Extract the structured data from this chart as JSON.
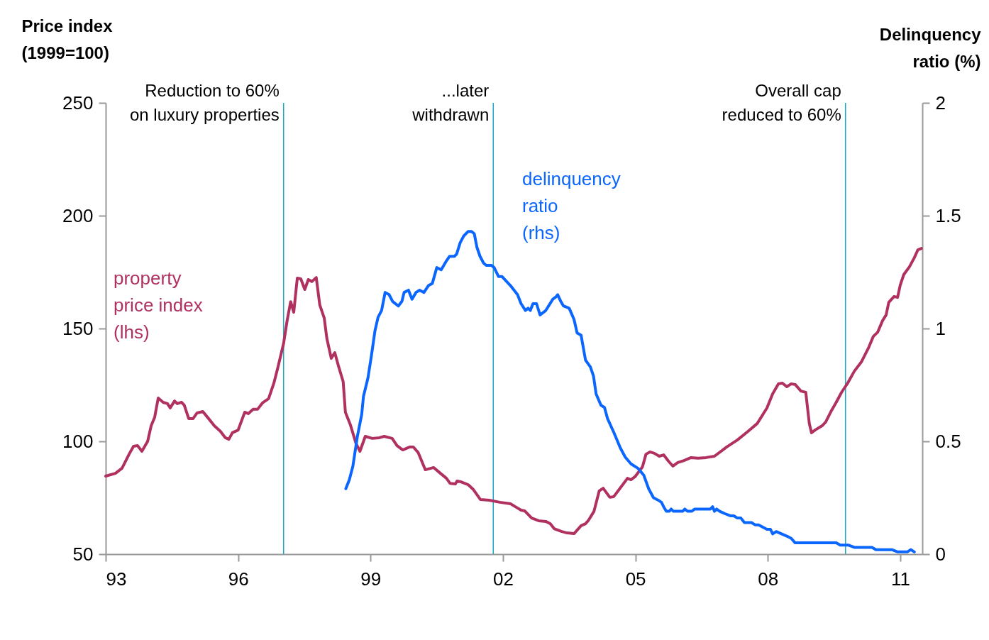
{
  "chart_data": {
    "type": "line",
    "ylabel": "Price index\n(1999=100)",
    "y2label": "Delinquency\nratio (%)",
    "xlim": [
      1993,
      2011.5
    ],
    "xticks": [
      {
        "value": 1993,
        "label": "93"
      },
      {
        "value": 1996,
        "label": "96"
      },
      {
        "value": 1999,
        "label": "99"
      },
      {
        "value": 2002,
        "label": "02"
      },
      {
        "value": 2005,
        "label": "05"
      },
      {
        "value": 2008,
        "label": "08"
      },
      {
        "value": 2011,
        "label": "11"
      }
    ],
    "ylim": [
      50,
      250
    ],
    "yticks": [
      50,
      100,
      150,
      200,
      250
    ],
    "y2lim": [
      0,
      2
    ],
    "y2ticks": [
      0,
      0.5,
      1,
      1.5,
      2
    ],
    "series": [
      {
        "name": "property\nprice index\n (lhs)",
        "color": "#b03060",
        "x": [
          1993.0,
          1993.22,
          1993.37,
          1993.53,
          1993.63,
          1993.72,
          1993.82,
          1993.95,
          1994.03,
          1994.11,
          1994.19,
          1994.3,
          1994.4,
          1994.46,
          1994.56,
          1994.62,
          1994.72,
          1994.78,
          1994.88,
          1994.98,
          1995.07,
          1995.2,
          1995.33,
          1995.46,
          1995.6,
          1995.71,
          1995.79,
          1995.87,
          1996.0,
          1996.15,
          1996.23,
          1996.34,
          1996.44,
          1996.55,
          1996.69,
          1996.81,
          1996.9,
          1997.03,
          1997.11,
          1997.19,
          1997.26,
          1997.34,
          1997.42,
          1997.51,
          1997.59,
          1997.67,
          1997.77,
          1997.85,
          1997.95,
          1998.01,
          1998.11,
          1998.19,
          1998.27,
          1998.38,
          1998.43,
          1998.54,
          1998.67,
          1998.76,
          1998.88,
          1999.04,
          1999.2,
          1999.31,
          1999.49,
          1999.6,
          1999.73,
          1999.89,
          1999.97,
          2000.08,
          2000.24,
          2000.43,
          2000.56,
          2000.72,
          2000.8,
          2000.92,
          2000.96,
          2001.04,
          2001.21,
          2001.33,
          2001.49,
          2001.69,
          2001.93,
          2002.17,
          2002.3,
          2002.41,
          2002.49,
          2002.65,
          2002.81,
          2002.97,
          2003.07,
          2003.16,
          2003.32,
          2003.45,
          2003.61,
          2003.77,
          2003.87,
          2003.93,
          2004.06,
          2004.18,
          2004.27,
          2004.42,
          2004.51,
          2004.63,
          2004.82,
          2004.9,
          2004.99,
          2005.16,
          2005.24,
          2005.33,
          2005.43,
          2005.54,
          2005.64,
          2005.75,
          2005.85,
          2005.96,
          2006.1,
          2006.26,
          2006.42,
          2006.6,
          2006.79,
          2007.07,
          2007.31,
          2007.55,
          2007.76,
          2007.98,
          2008.11,
          2008.24,
          2008.33,
          2008.43,
          2008.53,
          2008.62,
          2008.75,
          2008.86,
          2008.94,
          2008.99,
          2009.07,
          2009.23,
          2009.31,
          2009.43,
          2009.55,
          2009.67,
          2009.8,
          2009.96,
          2010.12,
          2010.29,
          2010.39,
          2010.49,
          2010.6,
          2010.68,
          2010.74,
          2010.86,
          2010.94,
          2011.0,
          2011.08,
          2011.21,
          2011.32,
          2011.4,
          2011.48
        ],
        "values": [
          84.6,
          85.8,
          88.1,
          94.3,
          97.8,
          98.1,
          95.6,
          100.0,
          106.9,
          110.7,
          119.2,
          117.3,
          116.7,
          114.8,
          117.9,
          116.7,
          117.3,
          116.0,
          110.1,
          110.1,
          112.6,
          113.2,
          110.1,
          106.9,
          104.4,
          101.6,
          100.9,
          103.8,
          105.0,
          112.9,
          112.3,
          114.2,
          114.2,
          117.0,
          118.9,
          125.8,
          132.7,
          143.4,
          153.5,
          161.9,
          157.2,
          172.3,
          172.0,
          167.3,
          171.7,
          170.8,
          172.6,
          160.4,
          154.7,
          145.6,
          136.8,
          139.3,
          133.6,
          126.4,
          112.9,
          107.5,
          99.1,
          95.6,
          102.2,
          101.3,
          101.6,
          102.2,
          101.3,
          98.1,
          96.2,
          97.5,
          97.5,
          95.0,
          87.4,
          88.4,
          86.2,
          83.6,
          81.4,
          81.1,
          82.4,
          82.1,
          80.8,
          78.6,
          74.2,
          73.9,
          73.0,
          72.3,
          70.8,
          69.5,
          69.2,
          66.0,
          64.8,
          64.5,
          63.5,
          61.3,
          60.1,
          59.4,
          59.1,
          62.6,
          63.5,
          64.8,
          68.9,
          78.0,
          79.2,
          75.2,
          75.5,
          78.6,
          83.6,
          83.0,
          84.3,
          88.7,
          94.3,
          95.3,
          94.7,
          93.4,
          94.0,
          91.2,
          89.0,
          90.6,
          91.5,
          92.8,
          92.5,
          92.8,
          93.4,
          97.5,
          100.6,
          104.4,
          107.9,
          114.8,
          121.1,
          125.5,
          125.8,
          124.2,
          125.5,
          125.2,
          122.3,
          121.7,
          107.9,
          103.8,
          105.0,
          106.9,
          108.5,
          113.2,
          117.3,
          121.7,
          125.5,
          131.1,
          135.2,
          141.8,
          146.5,
          148.4,
          153.5,
          156.0,
          161.6,
          164.2,
          163.8,
          169.2,
          173.9,
          177.4,
          181.4,
          184.9,
          185.5
        ]
      },
      {
        "name": "delinquency\nratio\n (rhs)",
        "color": "#0a66ff",
        "axis": "y2",
        "x": [
          1998.44,
          1998.52,
          1998.6,
          1998.7,
          1998.8,
          1998.84,
          1998.94,
          1999.02,
          1999.1,
          1999.17,
          1999.25,
          1999.33,
          1999.42,
          1999.5,
          1999.63,
          1999.71,
          1999.76,
          1999.86,
          1999.94,
          2000.03,
          2000.11,
          2000.21,
          2000.31,
          2000.4,
          2000.5,
          2000.6,
          2000.72,
          2000.79,
          2000.9,
          2000.95,
          2001.03,
          2001.11,
          2001.21,
          2001.29,
          2001.35,
          2001.41,
          2001.48,
          2001.56,
          2001.62,
          2001.74,
          2001.8,
          2001.9,
          2001.98,
          2002.17,
          2002.33,
          2002.41,
          2002.51,
          2002.57,
          2002.62,
          2002.68,
          2002.76,
          2002.84,
          2002.97,
          2003.13,
          2003.2,
          2003.24,
          2003.31,
          2003.37,
          2003.5,
          2003.61,
          2003.68,
          2003.77,
          2003.87,
          2003.98,
          2004.05,
          2004.11,
          2004.22,
          2004.3,
          2004.37,
          2004.51,
          2004.66,
          2004.77,
          2004.9,
          2005.06,
          2005.19,
          2005.3,
          2005.41,
          2005.51,
          2005.59,
          2005.64,
          2005.7,
          2005.77,
          2005.81,
          2005.86,
          2005.94,
          2006.07,
          2006.12,
          2006.18,
          2006.28,
          2006.34,
          2006.55,
          2006.7,
          2006.75,
          2006.79,
          2006.84,
          2006.91,
          2007.02,
          2007.15,
          2007.23,
          2007.31,
          2007.39,
          2007.47,
          2007.63,
          2007.71,
          2007.79,
          2007.98,
          2008.06,
          2008.11,
          2008.19,
          2008.43,
          2008.53,
          2008.62,
          2008.75,
          2008.99,
          2009.06,
          2009.11,
          2009.17,
          2009.39,
          2009.47,
          2009.55,
          2009.64,
          2009.75,
          2009.83,
          2009.96,
          2010.36,
          2010.45,
          2010.81,
          2010.94,
          2011.16,
          2011.24,
          2011.32
        ],
        "values": [
          0.29,
          0.33,
          0.39,
          0.52,
          0.62,
          0.7,
          0.78,
          0.88,
          0.99,
          1.05,
          1.08,
          1.16,
          1.15,
          1.12,
          1.1,
          1.12,
          1.16,
          1.17,
          1.13,
          1.16,
          1.17,
          1.16,
          1.19,
          1.2,
          1.27,
          1.26,
          1.3,
          1.32,
          1.32,
          1.33,
          1.38,
          1.41,
          1.43,
          1.43,
          1.42,
          1.36,
          1.32,
          1.29,
          1.28,
          1.28,
          1.27,
          1.23,
          1.23,
          1.19,
          1.15,
          1.11,
          1.08,
          1.09,
          1.08,
          1.11,
          1.11,
          1.06,
          1.08,
          1.13,
          1.14,
          1.15,
          1.12,
          1.1,
          1.09,
          1.04,
          0.98,
          0.97,
          0.86,
          0.83,
          0.79,
          0.71,
          0.66,
          0.65,
          0.6,
          0.54,
          0.47,
          0.43,
          0.4,
          0.38,
          0.35,
          0.29,
          0.25,
          0.24,
          0.23,
          0.21,
          0.19,
          0.19,
          0.2,
          0.19,
          0.19,
          0.19,
          0.2,
          0.19,
          0.19,
          0.2,
          0.2,
          0.2,
          0.21,
          0.19,
          0.2,
          0.19,
          0.18,
          0.17,
          0.17,
          0.16,
          0.16,
          0.14,
          0.14,
          0.13,
          0.13,
          0.11,
          0.11,
          0.09,
          0.1,
          0.08,
          0.07,
          0.05,
          0.05,
          0.05,
          0.05,
          0.05,
          0.05,
          0.05,
          0.05,
          0.05,
          0.04,
          0.04,
          0.04,
          0.03,
          0.03,
          0.02,
          0.02,
          0.01,
          0.01,
          0.02,
          0.01
        ]
      }
    ],
    "ref_lines": [
      {
        "axis": "x",
        "value": 1997.03,
        "label": "Reduction to 60%\non luxury  properties",
        "color": "#1ba8c8"
      },
      {
        "axis": "x",
        "value": 2001.78,
        "label": "...later\nwithdrawn",
        "color": "#1ba8c8"
      },
      {
        "axis": "x",
        "value": 2009.76,
        "label": "Overall cap\nreduced to 60%",
        "color": "#1ba8c8"
      }
    ]
  }
}
